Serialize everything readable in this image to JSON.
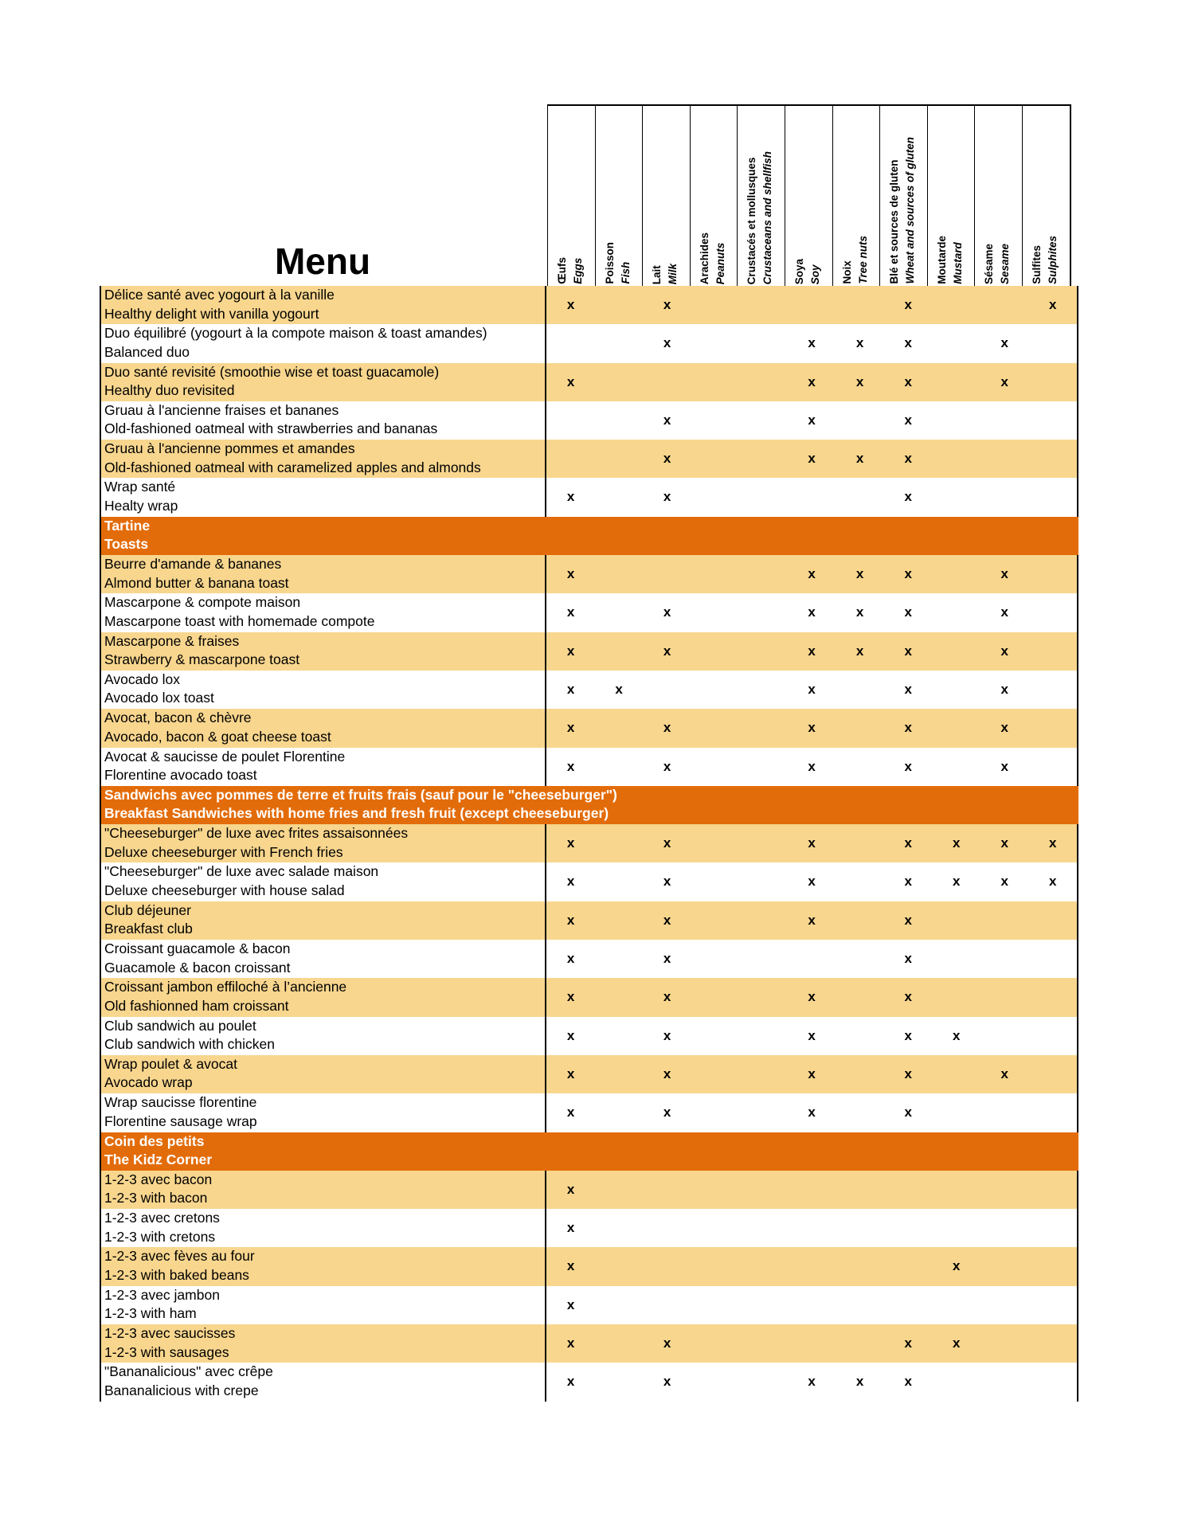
{
  "title": "Menu",
  "colors": {
    "band": "#f8d68e",
    "section": "#e36c0a"
  },
  "allergens": [
    {
      "fr": "Œufs",
      "en": "Eggs"
    },
    {
      "fr": "Poisson",
      "en": "Fish"
    },
    {
      "fr": "Lait",
      "en": "Milk"
    },
    {
      "fr": "Arachides",
      "en": "Peanuts"
    },
    {
      "fr": "Crustacés et  mollusques",
      "en": "Crustaceans and shellfish"
    },
    {
      "fr": "Soya",
      "en": "Soy"
    },
    {
      "fr": "Noix",
      "en": "Tree nuts"
    },
    {
      "fr": "Blé et sources de gluten",
      "en": "Wheat and sources of gluten"
    },
    {
      "fr": "Moutarde",
      "en": "Mustard"
    },
    {
      "fr": "Sésame",
      "en": "Sesame"
    },
    {
      "fr": "Sulfites",
      "en": "Sulphites"
    }
  ],
  "mark": "x",
  "rows": [
    {
      "fr": "Délice santé avec yogourt à la vanille",
      "en": "Healthy delight with vanilla yogourt",
      "marks": [
        0,
        2,
        7,
        10
      ]
    },
    {
      "fr": "Duo équilibré (yogourt à la compote maison & toast amandes)",
      "en": "Balanced duo",
      "marks": [
        2,
        5,
        6,
        7,
        9
      ]
    },
    {
      "fr": "Duo santé revisité (smoothie wise et toast guacamole)",
      "en": "Healthy duo revisited",
      "marks": [
        0,
        5,
        6,
        7,
        9
      ]
    },
    {
      "fr": "Gruau à l'ancienne fraises et bananes",
      "en": "Old-fashioned oatmeal with strawberries and bananas",
      "marks": [
        2,
        5,
        7
      ]
    },
    {
      "fr": "Gruau à l'ancienne pommes et amandes",
      "en": "Old-fashioned oatmeal with caramelized apples and almonds",
      "marks": [
        2,
        5,
        6,
        7
      ]
    },
    {
      "fr": "Wrap santé",
      "en": "Healty wrap",
      "marks": [
        0,
        2,
        7
      ]
    },
    {
      "section": true,
      "fr": "Tartine",
      "en": "Toasts"
    },
    {
      "fr": "Beurre d'amande & bananes",
      "en": "Almond butter & banana toast",
      "marks": [
        0,
        5,
        6,
        7,
        9
      ]
    },
    {
      "fr": "Mascarpone & compote maison",
      "en": "Mascarpone toast with homemade compote",
      "marks": [
        0,
        2,
        5,
        6,
        7,
        9
      ]
    },
    {
      "fr": "Mascarpone & fraises",
      "en": "Strawberry & mascarpone toast",
      "marks": [
        0,
        2,
        5,
        6,
        7,
        9
      ]
    },
    {
      "fr": "Avocado lox",
      "en": "Avocado lox toast",
      "marks": [
        0,
        1,
        5,
        7,
        9
      ]
    },
    {
      "fr": "Avocat, bacon & chèvre",
      "en": "Avocado, bacon & goat cheese toast",
      "marks": [
        0,
        2,
        5,
        7,
        9
      ]
    },
    {
      "fr": "Avocat & saucisse de poulet Florentine",
      "en": "Florentine avocado toast",
      "marks": [
        0,
        2,
        5,
        7,
        9
      ]
    },
    {
      "section": true,
      "fr": "Sandwichs avec pommes de terre et fruits frais (sauf pour le \"cheeseburger\")",
      "en": "Breakfast Sandwiches with home fries and fresh fruit (except cheeseburger)"
    },
    {
      "fr": "\"Cheeseburger\" de luxe avec frites assaisonnées",
      "en": "Deluxe cheeseburger with French fries",
      "marks": [
        0,
        2,
        5,
        7,
        8,
        9,
        10
      ]
    },
    {
      "fr": "\"Cheeseburger\" de luxe avec salade maison",
      "en": "Deluxe cheeseburger with house salad",
      "marks": [
        0,
        2,
        5,
        7,
        8,
        9,
        10
      ]
    },
    {
      "fr": "Club déjeuner",
      "en": "Breakfast club",
      "marks": [
        0,
        2,
        5,
        7
      ]
    },
    {
      "fr": "Croissant guacamole & bacon",
      "en": "Guacamole & bacon croissant",
      "marks": [
        0,
        2,
        7
      ]
    },
    {
      "fr": "Croissant jambon effiloché à l’ancienne",
      "en": "Old fashionned ham croissant",
      "marks": [
        0,
        2,
        5,
        7
      ]
    },
    {
      "fr": "Club sandwich au poulet",
      "en": "Club sandwich with chicken",
      "marks": [
        0,
        2,
        5,
        7,
        8
      ]
    },
    {
      "fr": "Wrap poulet & avocat",
      "en": "Avocado wrap",
      "marks": [
        0,
        2,
        5,
        7,
        9
      ]
    },
    {
      "fr": "Wrap saucisse florentine",
      "en": "Florentine sausage wrap",
      "marks": [
        0,
        2,
        5,
        7
      ]
    },
    {
      "section": true,
      "fr": "Coin des petits",
      "en": "The Kidz Corner"
    },
    {
      "fr": "1-2-3 avec bacon",
      "en": "1-2-3 with bacon",
      "marks": [
        0
      ]
    },
    {
      "fr": "1-2-3 avec cretons",
      "en": "1-2-3 with cretons",
      "marks": [
        0
      ]
    },
    {
      "fr": "1-2-3 avec fèves au four",
      "en": "1-2-3 with baked beans",
      "marks": [
        0,
        8
      ]
    },
    {
      "fr": "1-2-3 avec jambon",
      "en": "1-2-3 with ham",
      "marks": [
        0
      ]
    },
    {
      "fr": "1-2-3 avec saucisses",
      "en": "1-2-3 with sausages",
      "marks": [
        0,
        2,
        7,
        8
      ]
    },
    {
      "fr": "\"Bananalicious\" avec crêpe",
      "en": "Bananalicious with crepe",
      "marks": [
        0,
        2,
        5,
        6,
        7
      ]
    }
  ]
}
